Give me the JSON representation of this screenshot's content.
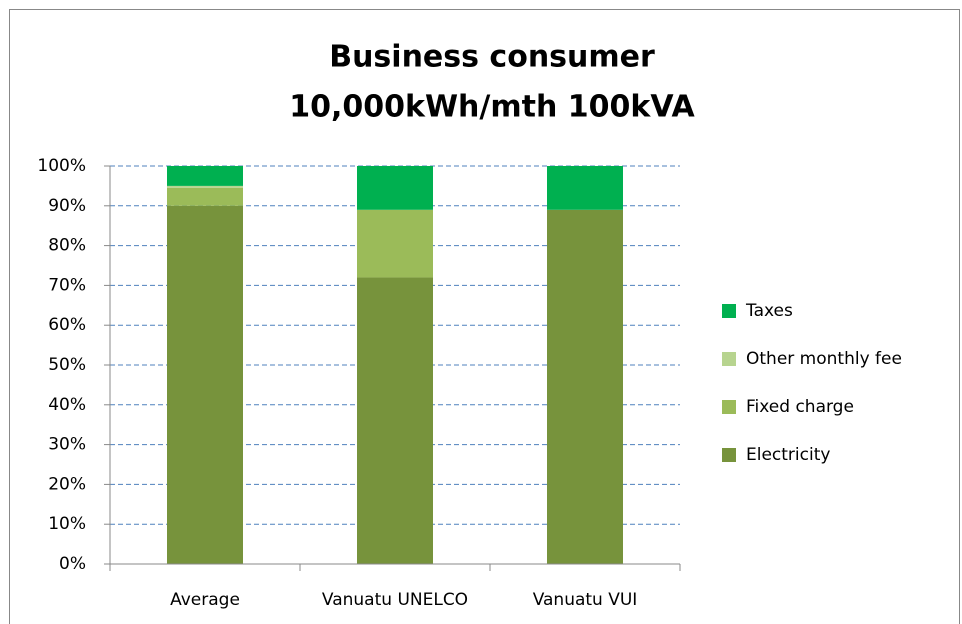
{
  "chart_data": {
    "type": "stacked_bar",
    "title": [
      "Business consumer",
      "10,000kWh/mth 100kVA"
    ],
    "categories": [
      "Average",
      "Vanuatu UNELCO",
      "Vanuatu VUI"
    ],
    "series": [
      {
        "name": "Electricity",
        "color": "#77933c",
        "values": [
          90,
          72,
          89
        ]
      },
      {
        "name": "Fixed charge",
        "color": "#9bbb59",
        "values": [
          4.5,
          17,
          0
        ]
      },
      {
        "name": "Other monthly fee",
        "color": "#b7d48f",
        "values": [
          0.5,
          0,
          0
        ]
      },
      {
        "name": "Taxes",
        "color": "#00b050",
        "values": [
          5,
          11,
          11
        ]
      }
    ],
    "ylim": [
      0,
      100
    ],
    "yticks": [
      {
        "value": 0,
        "label": "0%"
      },
      {
        "value": 10,
        "label": "10%"
      },
      {
        "value": 20,
        "label": "20%"
      },
      {
        "value": 30,
        "label": "30%"
      },
      {
        "value": 40,
        "label": "40%"
      },
      {
        "value": 50,
        "label": "50%"
      },
      {
        "value": 60,
        "label": "60%"
      },
      {
        "value": 70,
        "label": "70%"
      },
      {
        "value": 80,
        "label": "80%"
      },
      {
        "value": 90,
        "label": "90%"
      },
      {
        "value": 100,
        "label": "100%"
      }
    ],
    "grid": true,
    "legend": "right"
  }
}
